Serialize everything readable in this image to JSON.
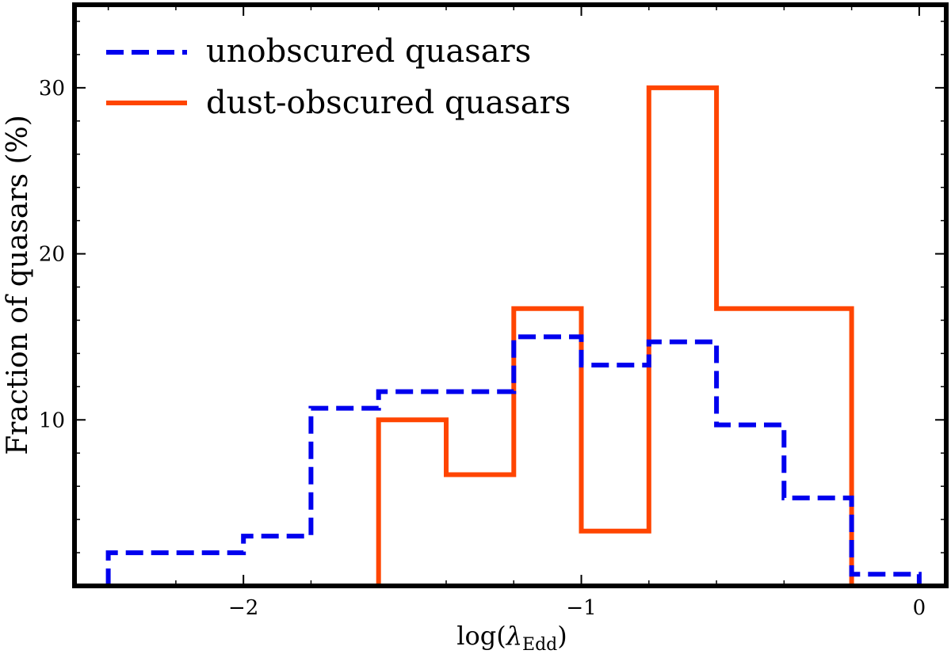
{
  "chart_data": {
    "type": "step",
    "xlabel_main": "log(",
    "xlabel_symbol": "λ",
    "xlabel_sub": "Edd",
    "xlabel_close": ")",
    "ylabel": "Fraction of quasars (%)",
    "xlim": [
      -2.5,
      0.08
    ],
    "ylim": [
      0,
      35
    ],
    "xticks": [
      -2,
      -1,
      0
    ],
    "xtick_labels": [
      "−2",
      "−1",
      "0"
    ],
    "yticks": [
      10,
      20,
      30
    ],
    "ytick_labels": [
      "10",
      "20",
      "30"
    ],
    "legend_position": "upper-left",
    "series": [
      {
        "name": "unobscured quasars",
        "style": "dashed",
        "color": "#0000ee",
        "bin_edges": [
          -2.4,
          -2.2,
          -2.0,
          -1.8,
          -1.6,
          -1.4,
          -1.2,
          -1.0,
          -0.8,
          -0.6,
          -0.4,
          -0.2,
          0.0
        ],
        "values": [
          2.0,
          2.0,
          3.0,
          10.7,
          11.7,
          11.7,
          15.0,
          13.3,
          14.7,
          9.7,
          5.3,
          0.7
        ]
      },
      {
        "name": "dust-obscured quasars",
        "style": "solid",
        "color": "#ff4500",
        "bin_edges": [
          -1.6,
          -1.4,
          -1.2,
          -1.0,
          -0.8,
          -0.6,
          -0.4,
          -0.2
        ],
        "values": [
          10.0,
          6.7,
          16.7,
          3.3,
          30.0,
          16.7,
          16.7
        ]
      }
    ]
  }
}
